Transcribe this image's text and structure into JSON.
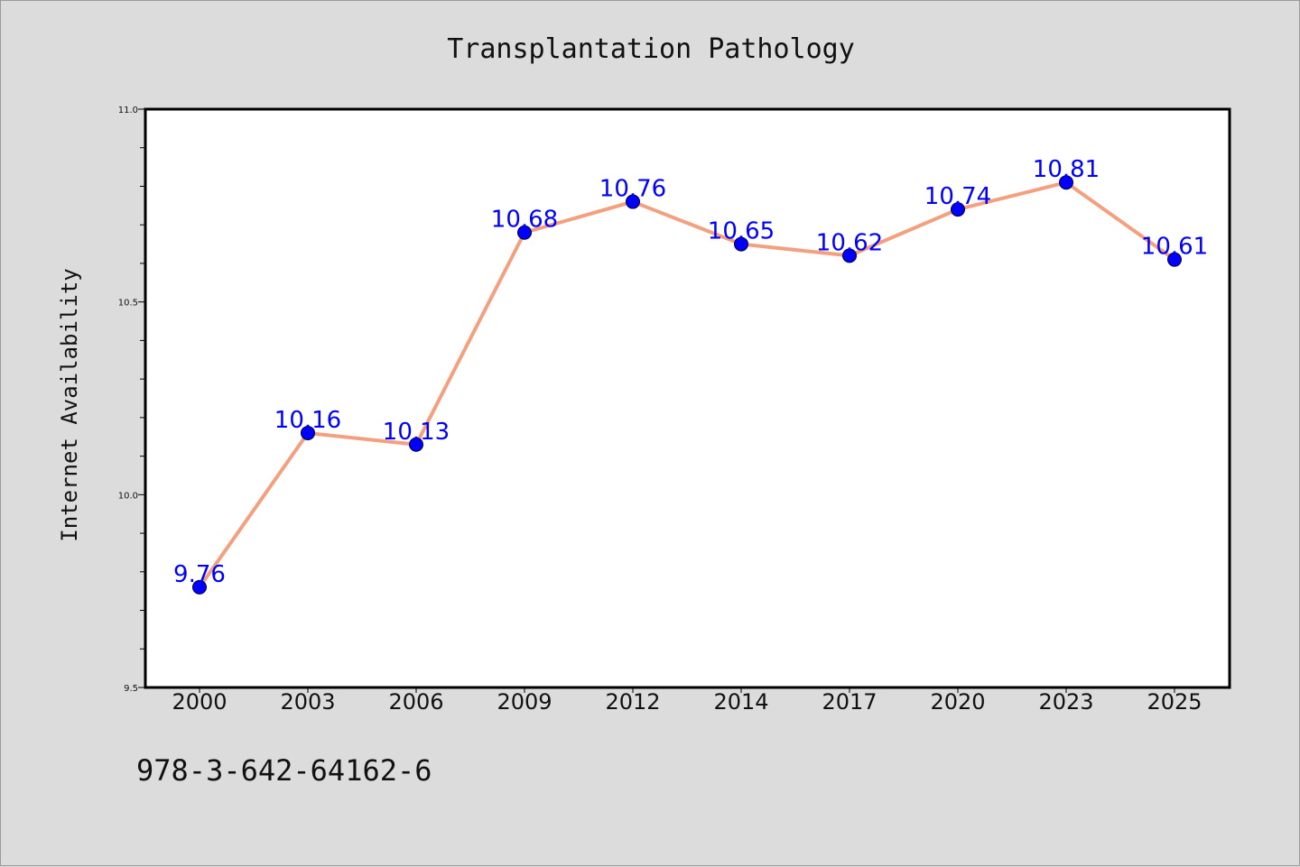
{
  "chart_data": {
    "type": "line",
    "title": "Transplantation Pathology",
    "xlabel": "",
    "ylabel": "Internet Availability",
    "categories": [
      "2000",
      "2003",
      "2006",
      "2009",
      "2012",
      "2014",
      "2017",
      "2020",
      "2023",
      "2025"
    ],
    "series": [
      {
        "values": [
          9.76,
          10.16,
          10.13,
          10.68,
          10.76,
          10.65,
          10.62,
          10.74,
          10.81,
          10.61
        ],
        "data_labels": [
          "9.76",
          "10.16",
          "10.13",
          "10.68",
          "10.76",
          "10.65",
          "10.62",
          "10.74",
          "10.81",
          "10.61"
        ],
        "line_color": "#f4a07f",
        "marker_color": "#0000ff"
      }
    ],
    "ylim": [
      9.5,
      11.0
    ],
    "yticks": [
      "9.5",
      "10.0",
      "10.5",
      "11.0"
    ],
    "grid": false,
    "legend": "none"
  },
  "footer": {
    "text": "978-3-642-64162-6"
  },
  "colors": {
    "background": "#dcdcdc",
    "plot_background": "#ffffff",
    "label_color": "#0000ff"
  }
}
